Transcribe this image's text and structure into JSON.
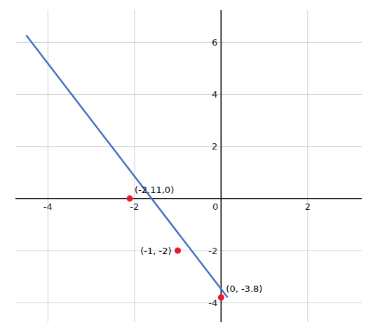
{
  "chart_data": {
    "type": "line",
    "xlim": [
      -4.75,
      3.25
    ],
    "ylim": [
      -4.75,
      7.25
    ],
    "xticks": [
      -4,
      -2,
      0,
      2
    ],
    "yticks": [
      -4,
      -2,
      2,
      4,
      6
    ],
    "grid": true,
    "data_labels": true,
    "series": [
      {
        "type": "line",
        "color": "#4472C4",
        "x": [
          -4.5,
          0.15
        ],
        "values": [
          6.27,
          -3.8
        ]
      },
      {
        "type": "scatter",
        "color": "#E8192C",
        "marker": "circle",
        "x": [
          -2.11,
          -1,
          0
        ],
        "values": [
          0,
          -2,
          -3.8
        ],
        "value_labels": [
          "(-2.11,0)",
          "(-1, -2)",
          "(0, -3.8)"
        ]
      }
    ]
  }
}
